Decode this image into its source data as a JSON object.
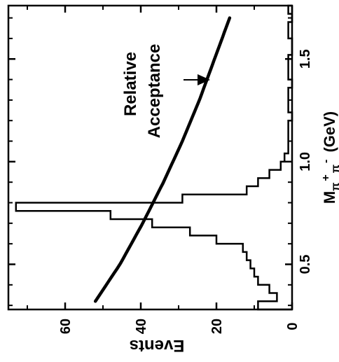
{
  "chart_data": {
    "type": "bar",
    "orientation": "rotated 90° (x axis runs vertically, y axis horizontally)",
    "xlabel": "M",
    "xlabel_sub": "π",
    "xlabel_sup1": "+",
    "xlabel_sub2": "π",
    "xlabel_sup2": "-",
    "xlabel_unit": "(GeV)",
    "ylabel": "Events",
    "xlim": [
      0.28,
      1.76
    ],
    "ylim": [
      0,
      75
    ],
    "x_ticks": [
      0.5,
      1.0,
      1.5
    ],
    "x_tick_labels": [
      "0.5",
      "1.0",
      "1.5"
    ],
    "y_ticks": [
      0,
      20,
      40,
      60
    ],
    "y_tick_labels": [
      "0",
      "20",
      "40",
      "60"
    ],
    "histogram": {
      "bin_edges": [
        0.28,
        0.32,
        0.36,
        0.4,
        0.44,
        0.48,
        0.52,
        0.56,
        0.6,
        0.64,
        0.68,
        0.72,
        0.76,
        0.8,
        0.84,
        0.88,
        0.92,
        0.96,
        1.0,
        1.04,
        1.08,
        1.12,
        1.16,
        1.2,
        1.24,
        1.28,
        1.32,
        1.36,
        1.4,
        1.44,
        1.48,
        1.52,
        1.56,
        1.6,
        1.64,
        1.68,
        1.72,
        1.76
      ],
      "values": [
        9,
        4,
        6,
        9,
        10,
        11,
        12,
        13,
        20,
        27,
        37,
        48,
        73,
        29,
        12,
        9,
        6,
        3,
        2,
        1,
        1,
        1,
        1,
        0,
        1,
        1,
        1,
        0,
        1,
        1,
        1,
        0,
        0,
        1,
        1,
        0,
        1
      ]
    },
    "curve": {
      "name": "Relative Acceptance",
      "x": [
        0.32,
        0.5,
        0.7,
        0.9,
        1.1,
        1.3,
        1.5,
        1.7
      ],
      "y": [
        52,
        45.5,
        39.5,
        34,
        29,
        24.5,
        20.5,
        16.5
      ]
    },
    "annotations": [
      {
        "text_line1": "Relative",
        "text_line2": "Acceptance",
        "points_to": "curve"
      }
    ]
  }
}
